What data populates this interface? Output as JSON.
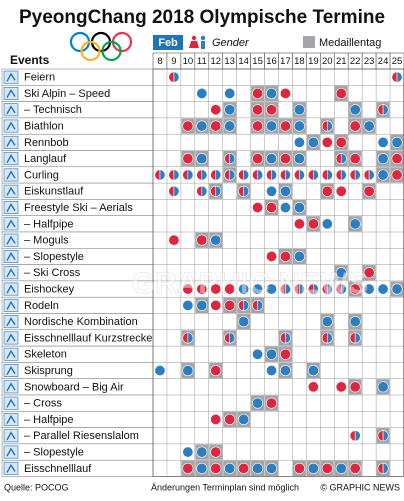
{
  "chart_data": {
    "type": "schedule",
    "title": "PyeongChang 2018 Olympische Termine",
    "month": "Feb",
    "gender_label": "Gender",
    "medal_label": "Medaillentag",
    "events_header": "Events",
    "days": [
      8,
      9,
      10,
      11,
      12,
      13,
      14,
      15,
      16,
      17,
      18,
      19,
      20,
      21,
      22,
      23,
      24,
      25
    ],
    "colors": {
      "m": "#2b7ec1",
      "w": "#e0263f",
      "medal": "#a3a5a8",
      "header": "#1f74b8"
    },
    "rows": [
      {
        "name": "Feiern",
        "sessions": [
          {
            "day": 9,
            "gender": "x",
            "medal": false
          },
          {
            "day": 25,
            "gender": "x",
            "medal": false
          }
        ]
      },
      {
        "name": "Ski Alpin – Speed",
        "sessions": [
          {
            "day": 11,
            "gender": "m",
            "medal": false
          },
          {
            "day": 13,
            "gender": "m",
            "medal": false
          },
          {
            "day": 15,
            "gender": "w",
            "medal": true
          },
          {
            "day": 16,
            "gender": "m",
            "medal": true
          },
          {
            "day": 17,
            "gender": "w",
            "medal": false
          },
          {
            "day": 21,
            "gender": "w",
            "medal": true
          }
        ]
      },
      {
        "name": "– Technisch",
        "sessions": [
          {
            "day": 12,
            "gender": "w",
            "medal": false
          },
          {
            "day": 13,
            "gender": "m",
            "medal": true
          },
          {
            "day": 15,
            "gender": "w",
            "medal": true
          },
          {
            "day": 16,
            "gender": "w",
            "medal": true
          },
          {
            "day": 18,
            "gender": "m",
            "medal": true
          },
          {
            "day": 22,
            "gender": "m",
            "medal": true
          },
          {
            "day": 24,
            "gender": "x",
            "medal": true
          }
        ]
      },
      {
        "name": "Biathlon",
        "sessions": [
          {
            "day": 10,
            "gender": "w",
            "medal": true
          },
          {
            "day": 11,
            "gender": "m",
            "medal": true
          },
          {
            "day": 12,
            "gender": "w",
            "medal": true
          },
          {
            "day": 13,
            "gender": "m",
            "medal": true
          },
          {
            "day": 15,
            "gender": "w",
            "medal": true
          },
          {
            "day": 16,
            "gender": "m",
            "medal": true
          },
          {
            "day": 17,
            "gender": "w",
            "medal": true
          },
          {
            "day": 18,
            "gender": "m",
            "medal": true
          },
          {
            "day": 20,
            "gender": "x",
            "medal": true
          },
          {
            "day": 22,
            "gender": "w",
            "medal": true
          },
          {
            "day": 23,
            "gender": "m",
            "medal": true
          }
        ]
      },
      {
        "name": "Rennbob",
        "sessions": [
          {
            "day": 18,
            "gender": "m",
            "medal": false
          },
          {
            "day": 19,
            "gender": "m",
            "medal": true
          },
          {
            "day": 20,
            "gender": "w",
            "medal": false
          },
          {
            "day": 21,
            "gender": "w",
            "medal": true
          },
          {
            "day": 24,
            "gender": "m",
            "medal": false
          },
          {
            "day": 25,
            "gender": "m",
            "medal": true
          }
        ]
      },
      {
        "name": "Langlauf",
        "sessions": [
          {
            "day": 10,
            "gender": "w",
            "medal": true
          },
          {
            "day": 11,
            "gender": "m",
            "medal": true
          },
          {
            "day": 13,
            "gender": "x",
            "medal": true
          },
          {
            "day": 15,
            "gender": "w",
            "medal": true
          },
          {
            "day": 16,
            "gender": "m",
            "medal": true
          },
          {
            "day": 17,
            "gender": "w",
            "medal": true
          },
          {
            "day": 18,
            "gender": "m",
            "medal": true
          },
          {
            "day": 21,
            "gender": "x",
            "medal": true
          },
          {
            "day": 22,
            "gender": "w",
            "medal": true
          },
          {
            "day": 24,
            "gender": "m",
            "medal": true
          },
          {
            "day": 25,
            "gender": "w",
            "medal": true
          }
        ]
      },
      {
        "name": "Curling",
        "sessions": [
          {
            "day": 8,
            "gender": "x",
            "medal": false
          },
          {
            "day": 9,
            "gender": "x",
            "medal": false
          },
          {
            "day": 10,
            "gender": "x",
            "medal": false
          },
          {
            "day": 11,
            "gender": "x",
            "medal": false
          },
          {
            "day": 12,
            "gender": "x",
            "medal": false
          },
          {
            "day": 13,
            "gender": "x",
            "medal": true
          },
          {
            "day": 14,
            "gender": "x",
            "medal": false
          },
          {
            "day": 15,
            "gender": "x",
            "medal": false
          },
          {
            "day": 16,
            "gender": "x",
            "medal": false
          },
          {
            "day": 17,
            "gender": "x",
            "medal": false
          },
          {
            "day": 18,
            "gender": "x",
            "medal": false
          },
          {
            "day": 19,
            "gender": "x",
            "medal": false
          },
          {
            "day": 20,
            "gender": "x",
            "medal": false
          },
          {
            "day": 21,
            "gender": "x",
            "medal": false
          },
          {
            "day": 22,
            "gender": "x",
            "medal": false
          },
          {
            "day": 23,
            "gender": "x",
            "medal": false
          },
          {
            "day": 24,
            "gender": "m",
            "medal": true
          },
          {
            "day": 25,
            "gender": "w",
            "medal": true
          }
        ]
      },
      {
        "name": "Eiskunstlauf",
        "sessions": [
          {
            "day": 9,
            "gender": "x",
            "medal": false
          },
          {
            "day": 11,
            "gender": "x",
            "medal": false
          },
          {
            "day": 12,
            "gender": "x",
            "medal": true
          },
          {
            "day": 14,
            "gender": "x",
            "medal": true
          },
          {
            "day": 16,
            "gender": "m",
            "medal": false
          },
          {
            "day": 17,
            "gender": "m",
            "medal": true
          },
          {
            "day": 20,
            "gender": "w",
            "medal": true
          },
          {
            "day": 21,
            "gender": "w",
            "medal": false
          },
          {
            "day": 23,
            "gender": "w",
            "medal": true
          }
        ]
      },
      {
        "name": "Freestyle Ski – Aerials",
        "sessions": [
          {
            "day": 15,
            "gender": "w",
            "medal": false
          },
          {
            "day": 16,
            "gender": "w",
            "medal": true
          },
          {
            "day": 17,
            "gender": "m",
            "medal": false
          },
          {
            "day": 18,
            "gender": "m",
            "medal": true
          }
        ]
      },
      {
        "name": "– Halfpipe",
        "sessions": [
          {
            "day": 18,
            "gender": "w",
            "medal": false
          },
          {
            "day": 19,
            "gender": "w",
            "medal": true
          },
          {
            "day": 20,
            "gender": "m",
            "medal": false
          },
          {
            "day": 22,
            "gender": "m",
            "medal": true
          }
        ]
      },
      {
        "name": "– Moguls",
        "sessions": [
          {
            "day": 9,
            "gender": "w",
            "medal": false
          },
          {
            "day": 11,
            "gender": "w",
            "medal": true
          },
          {
            "day": 12,
            "gender": "m",
            "medal": true
          }
        ]
      },
      {
        "name": "– Slopestyle",
        "sessions": [
          {
            "day": 16,
            "gender": "w",
            "medal": false
          },
          {
            "day": 17,
            "gender": "w",
            "medal": true
          },
          {
            "day": 18,
            "gender": "m",
            "medal": true
          }
        ]
      },
      {
        "name": "– Ski Cross",
        "sessions": [
          {
            "day": 21,
            "gender": "m",
            "medal": true
          },
          {
            "day": 23,
            "gender": "w",
            "medal": true
          }
        ]
      },
      {
        "name": "Eishockey",
        "sessions": [
          {
            "day": 10,
            "gender": "w",
            "medal": false
          },
          {
            "day": 11,
            "gender": "w",
            "medal": false
          },
          {
            "day": 12,
            "gender": "w",
            "medal": false
          },
          {
            "day": 13,
            "gender": "w",
            "medal": false
          },
          {
            "day": 14,
            "gender": "m",
            "medal": false
          },
          {
            "day": 15,
            "gender": "m",
            "medal": false
          },
          {
            "day": 16,
            "gender": "m",
            "medal": false
          },
          {
            "day": 17,
            "gender": "x",
            "medal": false
          },
          {
            "day": 18,
            "gender": "x",
            "medal": false
          },
          {
            "day": 19,
            "gender": "x",
            "medal": false
          },
          {
            "day": 20,
            "gender": "x",
            "medal": false
          },
          {
            "day": 21,
            "gender": "x",
            "medal": false
          },
          {
            "day": 22,
            "gender": "w",
            "medal": true
          },
          {
            "day": 23,
            "gender": "m",
            "medal": false
          },
          {
            "day": 24,
            "gender": "m",
            "medal": false
          },
          {
            "day": 25,
            "gender": "m",
            "medal": true
          }
        ]
      },
      {
        "name": "Rodeln",
        "sessions": [
          {
            "day": 10,
            "gender": "m",
            "medal": false
          },
          {
            "day": 11,
            "gender": "m",
            "medal": true
          },
          {
            "day": 12,
            "gender": "w",
            "medal": false
          },
          {
            "day": 13,
            "gender": "w",
            "medal": true
          },
          {
            "day": 14,
            "gender": "x",
            "medal": true
          },
          {
            "day": 15,
            "gender": "x",
            "medal": true
          }
        ]
      },
      {
        "name": "Nordische Kombination",
        "sessions": [
          {
            "day": 14,
            "gender": "m",
            "medal": true
          },
          {
            "day": 20,
            "gender": "m",
            "medal": true
          },
          {
            "day": 22,
            "gender": "m",
            "medal": true
          }
        ]
      },
      {
        "name": "Eisschnelllauf Kurzstrecke",
        "sessions": [
          {
            "day": 10,
            "gender": "x",
            "medal": true
          },
          {
            "day": 13,
            "gender": "x",
            "medal": true
          },
          {
            "day": 17,
            "gender": "x",
            "medal": true
          },
          {
            "day": 20,
            "gender": "x",
            "medal": true
          },
          {
            "day": 22,
            "gender": "x",
            "medal": true
          }
        ]
      },
      {
        "name": "Skeleton",
        "sessions": [
          {
            "day": 15,
            "gender": "m",
            "medal": false
          },
          {
            "day": 16,
            "gender": "m",
            "medal": true
          },
          {
            "day": 17,
            "gender": "w",
            "medal": true
          }
        ]
      },
      {
        "name": "Skisprung",
        "sessions": [
          {
            "day": 8,
            "gender": "m",
            "medal": false
          },
          {
            "day": 10,
            "gender": "m",
            "medal": true
          },
          {
            "day": 12,
            "gender": "w",
            "medal": true
          },
          {
            "day": 16,
            "gender": "m",
            "medal": false
          },
          {
            "day": 17,
            "gender": "m",
            "medal": true
          },
          {
            "day": 19,
            "gender": "m",
            "medal": true
          }
        ]
      },
      {
        "name": "Snowboard – Big Air",
        "sessions": [
          {
            "day": 19,
            "gender": "w",
            "medal": false
          },
          {
            "day": 21,
            "gender": "w",
            "medal": false
          },
          {
            "day": 22,
            "gender": "w",
            "medal": true
          },
          {
            "day": 24,
            "gender": "m",
            "medal": true
          }
        ]
      },
      {
        "name": "– Cross",
        "sessions": [
          {
            "day": 15,
            "gender": "m",
            "medal": true
          },
          {
            "day": 16,
            "gender": "w",
            "medal": true
          }
        ]
      },
      {
        "name": "– Halfpipe",
        "sessions": [
          {
            "day": 12,
            "gender": "w",
            "medal": false
          },
          {
            "day": 13,
            "gender": "w",
            "medal": true
          },
          {
            "day": 14,
            "gender": "m",
            "medal": true
          }
        ]
      },
      {
        "name": "– Parallel Riesenslalom",
        "sessions": [
          {
            "day": 22,
            "gender": "x",
            "medal": false
          },
          {
            "day": 24,
            "gender": "x",
            "medal": true
          }
        ]
      },
      {
        "name": "– Slopestyle",
        "sessions": [
          {
            "day": 10,
            "gender": "m",
            "medal": false
          },
          {
            "day": 11,
            "gender": "m",
            "medal": true
          },
          {
            "day": 12,
            "gender": "w",
            "medal": true
          }
        ]
      },
      {
        "name": "Eisschnelllauf",
        "sessions": [
          {
            "day": 10,
            "gender": "w",
            "medal": true
          },
          {
            "day": 11,
            "gender": "m",
            "medal": true
          },
          {
            "day": 12,
            "gender": "w",
            "medal": true
          },
          {
            "day": 13,
            "gender": "m",
            "medal": true
          },
          {
            "day": 14,
            "gender": "w",
            "medal": true
          },
          {
            "day": 15,
            "gender": "m",
            "medal": true
          },
          {
            "day": 16,
            "gender": "m",
            "medal": true
          },
          {
            "day": 18,
            "gender": "w",
            "medal": true
          },
          {
            "day": 19,
            "gender": "m",
            "medal": true
          },
          {
            "day": 20,
            "gender": "w",
            "medal": true
          },
          {
            "day": 21,
            "gender": "m",
            "medal": true
          },
          {
            "day": 22,
            "gender": "w",
            "medal": true
          },
          {
            "day": 24,
            "gender": "x",
            "medal": true
          }
        ]
      }
    ],
    "source": "Quelle: POCOG",
    "note": "Änderungen Terminplan sind möglich",
    "credit": "© GRAPHIC NEWS",
    "watermark": "GRAPHIC NEWS"
  }
}
